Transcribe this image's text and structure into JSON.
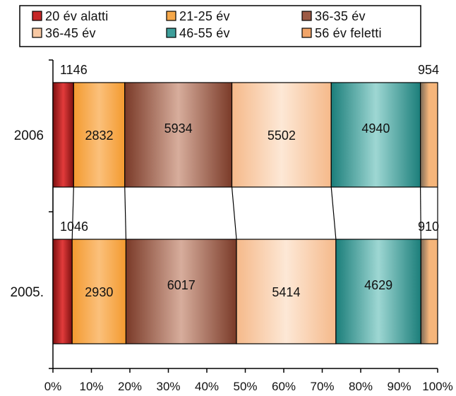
{
  "chart_data": {
    "type": "bar",
    "orientation": "horizontal",
    "stacked": true,
    "normalized": true,
    "categories": [
      "2006",
      "2005."
    ],
    "series": [
      {
        "name": "20 év alatti",
        "values": [
          1146,
          1046
        ],
        "color": "#c62828"
      },
      {
        "name": "21-25 év",
        "values": [
          2832,
          2930
        ],
        "color": "#f6a84a"
      },
      {
        "name": "36-35 év",
        "values": [
          5934,
          6017
        ],
        "color": "#9c5a45"
      },
      {
        "name": "36-45 év",
        "values": [
          5502,
          5414
        ],
        "color": "#f7c8a3"
      },
      {
        "name": "46-55 év",
        "values": [
          4940,
          4629
        ],
        "color": "#3e9e9a"
      },
      {
        "name": "56 év feletti",
        "values": [
          954,
          910
        ],
        "color": "#f1a468"
      }
    ],
    "data_labels": [
      [
        "1146",
        "2832",
        "5934",
        "5502",
        "4940",
        "954"
      ],
      [
        "1046",
        "2930",
        "6017",
        "5414",
        "4629",
        "910"
      ]
    ],
    "x_ticks": [
      "0%",
      "10%",
      "20%",
      "30%",
      "40%",
      "50%",
      "60%",
      "70%",
      "80%",
      "90%",
      "100%"
    ],
    "xlim": [
      0,
      100
    ],
    "title": "",
    "xlabel": "",
    "ylabel": "",
    "legend_position": "top",
    "grid": false,
    "series_lines": true
  }
}
